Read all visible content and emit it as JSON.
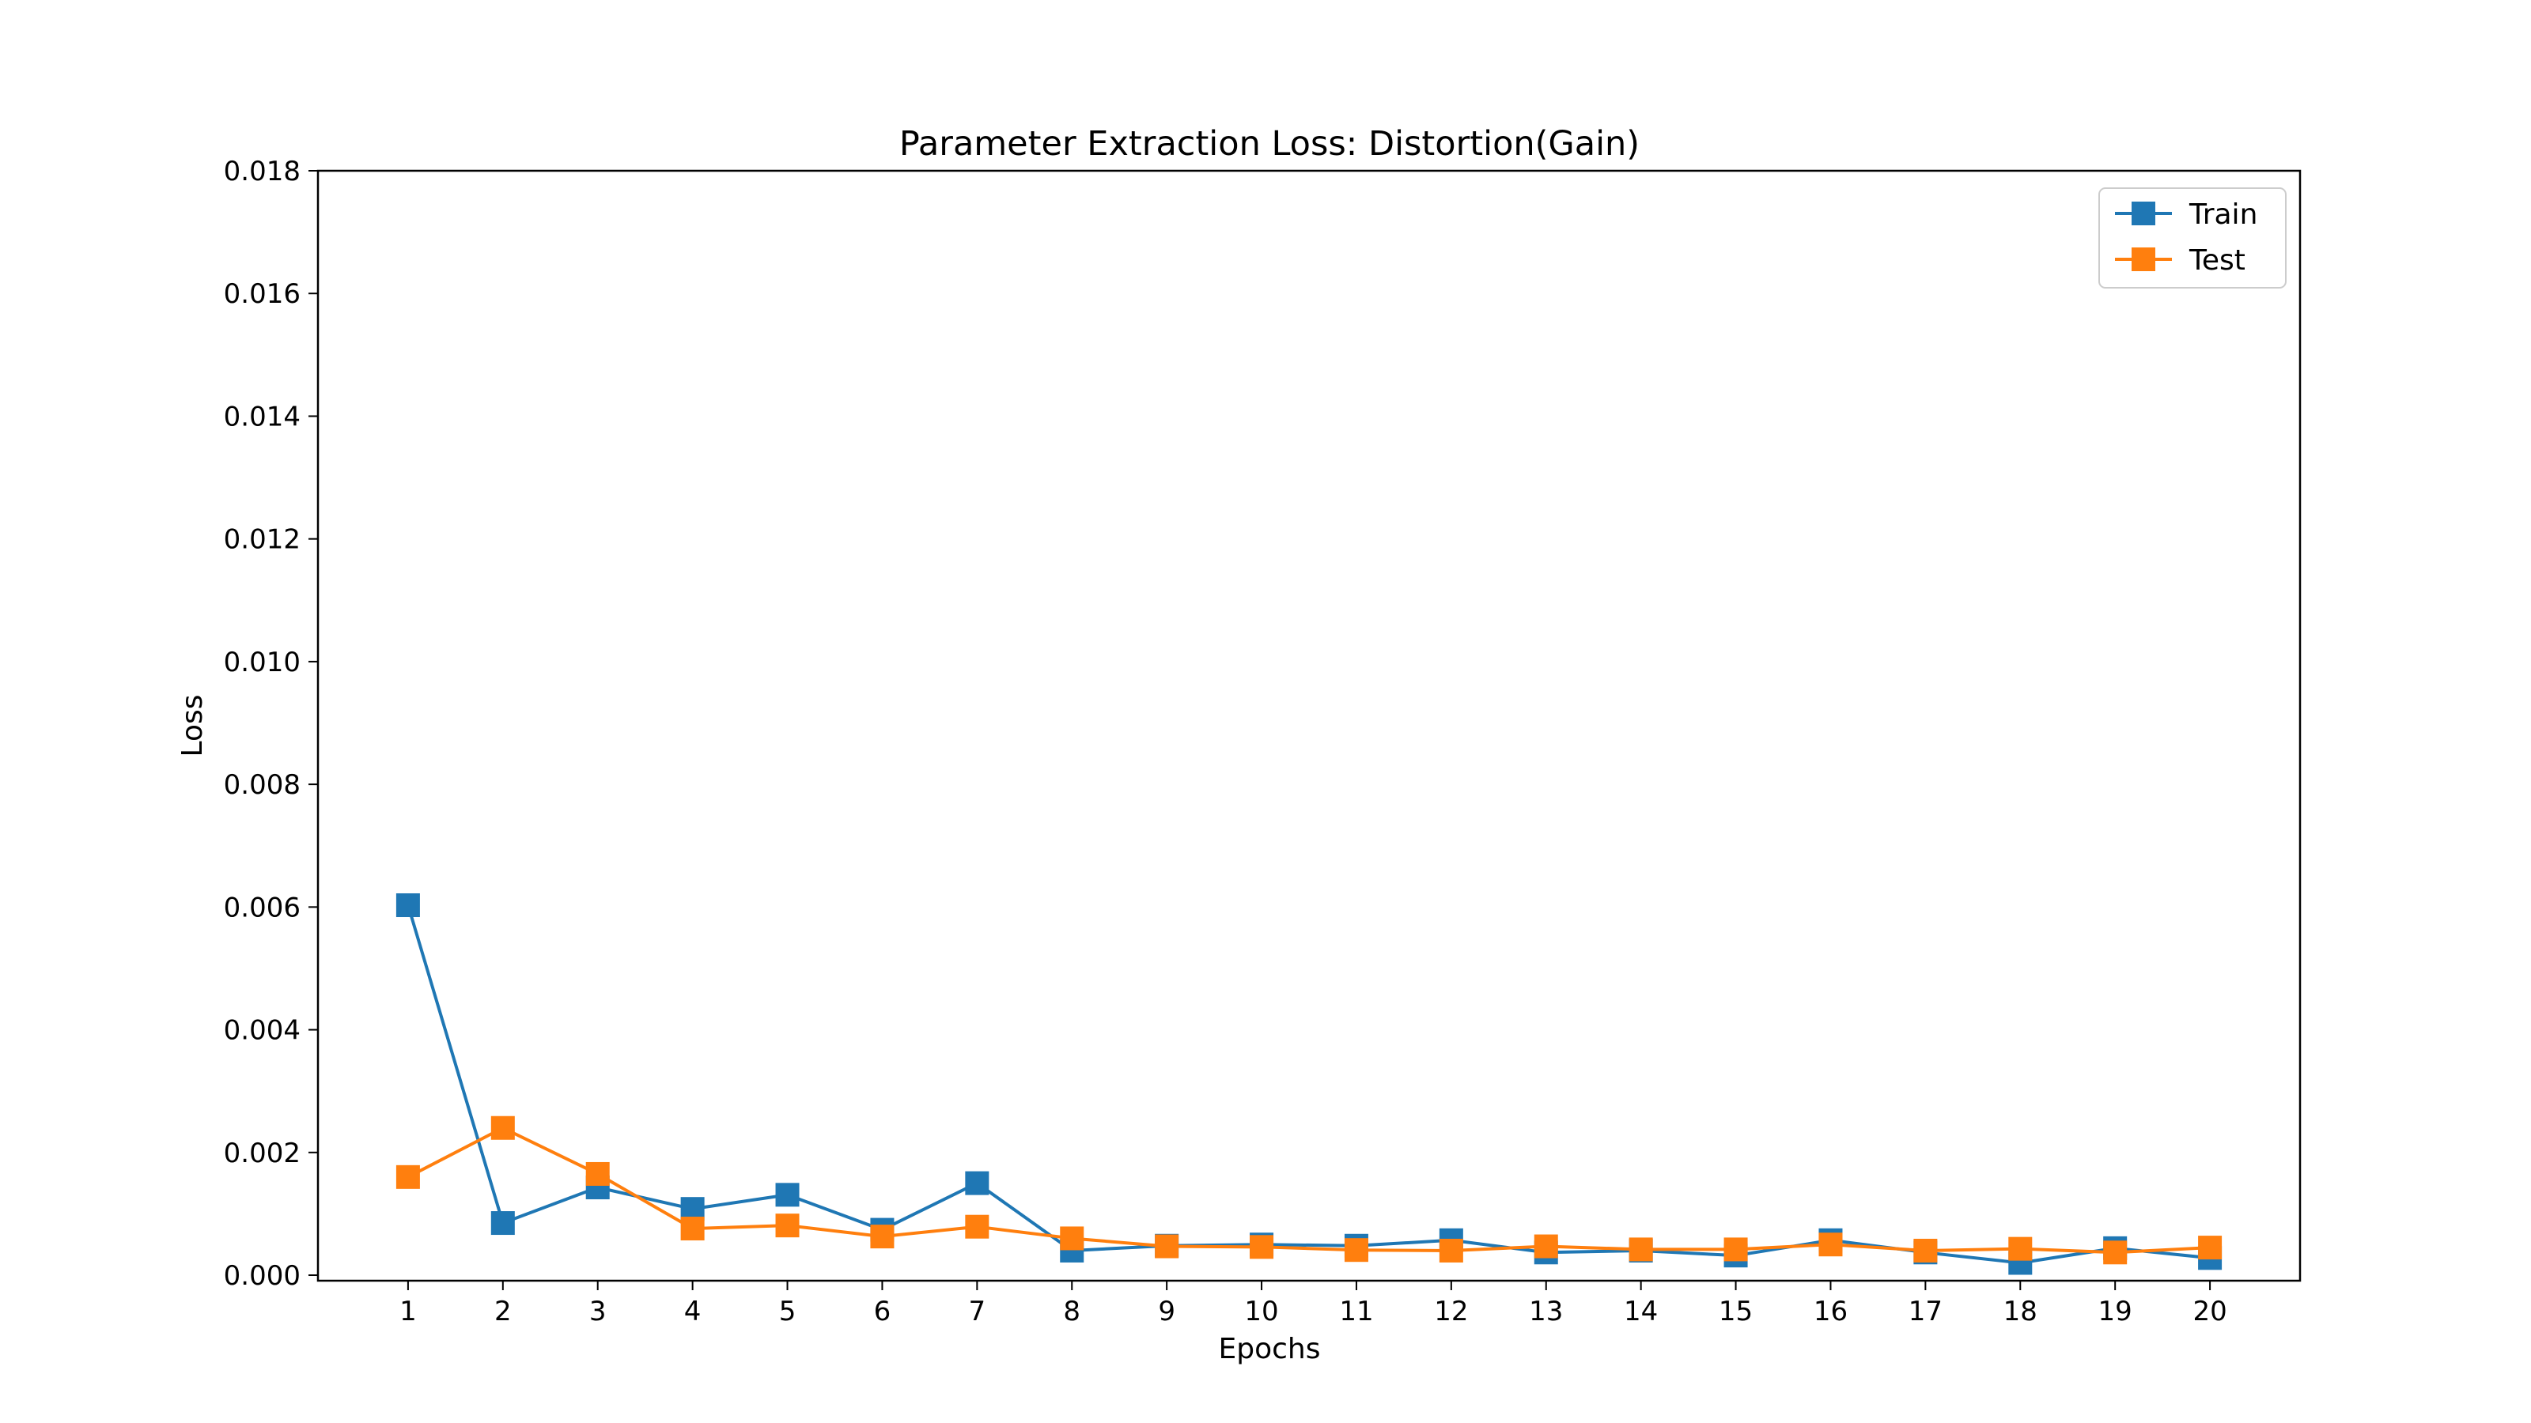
{
  "chart_data": {
    "type": "line",
    "title": "Parameter Extraction Loss: Distortion(Gain)",
    "xlabel": "Epochs",
    "ylabel": "Loss",
    "x": [
      1,
      2,
      3,
      4,
      5,
      6,
      7,
      8,
      9,
      10,
      11,
      12,
      13,
      14,
      15,
      16,
      17,
      18,
      19,
      20
    ],
    "x_tick_labels": [
      "1",
      "2",
      "3",
      "4",
      "5",
      "6",
      "7",
      "8",
      "9",
      "10",
      "11",
      "12",
      "13",
      "14",
      "15",
      "16",
      "17",
      "18",
      "19",
      "20"
    ],
    "xlim": [
      0.05,
      20.95
    ],
    "ylim": [
      -9e-05,
      0.018
    ],
    "y_ticks": [
      0.0,
      0.002,
      0.004,
      0.006,
      0.008,
      0.01,
      0.012,
      0.014,
      0.016,
      0.018
    ],
    "y_tick_labels": [
      "0.000",
      "0.002",
      "0.004",
      "0.006",
      "0.008",
      "0.010",
      "0.012",
      "0.014",
      "0.016",
      "0.018"
    ],
    "grid": false,
    "legend_position": "top-right",
    "series": [
      {
        "name": "Train",
        "color": "#1f77b4",
        "marker": "square",
        "values": [
          0.00603,
          0.00085,
          0.00143,
          0.00108,
          0.00131,
          0.00074,
          0.0015,
          0.0004,
          0.00048,
          0.0005,
          0.00048,
          0.00057,
          0.00037,
          0.0004,
          0.00032,
          0.00057,
          0.00037,
          0.0002,
          0.00044,
          0.00028
        ]
      },
      {
        "name": "Test",
        "color": "#ff7f0e",
        "marker": "square",
        "values": [
          0.0016,
          0.0024,
          0.00165,
          0.00076,
          0.00081,
          0.00063,
          0.00079,
          0.0006,
          0.00047,
          0.00046,
          0.00041,
          0.0004,
          0.00047,
          0.00042,
          0.00042,
          0.0005,
          0.0004,
          0.00043,
          0.00037,
          0.00045
        ]
      }
    ]
  }
}
